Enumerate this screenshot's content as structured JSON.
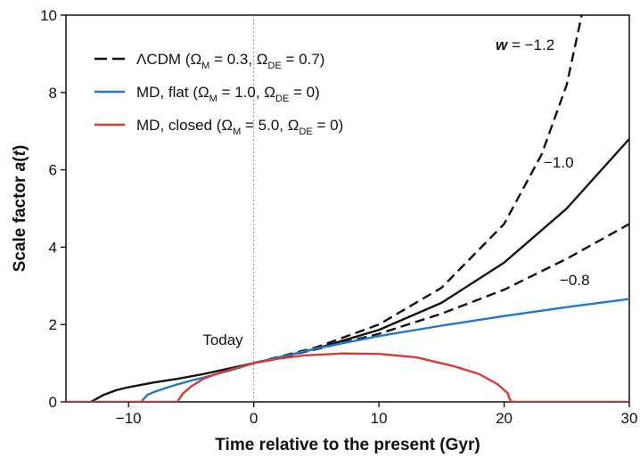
{
  "chart_data": {
    "type": "line",
    "xlabel": "Time relative to the present (Gyr)",
    "ylabel_main": "Scale factor ",
    "ylabel_var": "a",
    "ylabel_open": "(",
    "ylabel_t": "t",
    "ylabel_close": ")",
    "xlim": [
      -15,
      30
    ],
    "ylim": [
      0,
      10
    ],
    "xticks": [
      -10,
      0,
      10,
      20,
      30
    ],
    "yticks": [
      0,
      2,
      4,
      6,
      8,
      10
    ],
    "xtick_labels": [
      "−10",
      "0",
      "10",
      "20",
      "30"
    ],
    "ytick_labels": [
      "0",
      "2",
      "4",
      "6",
      "8",
      "10"
    ],
    "grid": false,
    "legend_position": "top-left",
    "today_x": 0,
    "today_label": "Today",
    "annotations": {
      "w_var": "w",
      "w_rest": " = −1.2",
      "minus_one": "−1.0",
      "minus_point_eight": "−0.8"
    },
    "legend": [
      {
        "style": "dashed",
        "color": "#111111",
        "lambda": "Λ",
        "prefix": "CDM (Ω",
        "sub_m": "M",
        "mid": " = 0.3, Ω",
        "sub_de": "DE",
        "suffix": " = 0.7)"
      },
      {
        "style": "solid",
        "color": "#1f78c8",
        "prefix": "MD, flat (Ω",
        "sub_m": "M",
        "mid": " = 1.0, Ω",
        "sub_de": "DE",
        "suffix": " = 0)"
      },
      {
        "style": "solid",
        "color": "#d93a31",
        "prefix": "MD, closed (Ω",
        "sub_m": "M",
        "mid": " = 5.0, Ω",
        "sub_de": "DE",
        "suffix": " = 0)"
      }
    ],
    "series": [
      {
        "name": "ΛCDM",
        "color": "#111111",
        "style": "solid",
        "x": [
          -13.0,
          -12.0,
          -11.0,
          -10.0,
          -8.0,
          -6.0,
          -4.0,
          -2.0,
          0.0,
          2.0,
          5.0,
          10.0,
          15.0,
          20.0,
          25.0,
          30.0
        ],
        "y": [
          0.0,
          0.18,
          0.3,
          0.38,
          0.5,
          0.6,
          0.72,
          0.86,
          1.0,
          1.14,
          1.38,
          1.86,
          2.56,
          3.6,
          5.0,
          6.8
        ]
      },
      {
        "name": "w = −1.2",
        "color": "#111111",
        "style": "dashed",
        "x": [
          0.0,
          5.0,
          10.0,
          15.0,
          20.0,
          23.0,
          25.0,
          26.2
        ],
        "y": [
          1.0,
          1.41,
          2.0,
          2.95,
          4.6,
          6.4,
          8.2,
          10.0
        ]
      },
      {
        "name": "w = −0.8",
        "color": "#111111",
        "style": "dashed",
        "x": [
          0.0,
          5.0,
          10.0,
          15.0,
          20.0,
          25.0,
          30.0
        ],
        "y": [
          1.0,
          1.36,
          1.76,
          2.28,
          2.9,
          3.7,
          4.6
        ]
      },
      {
        "name": "MD, flat",
        "color": "#1f78c8",
        "style": "solid",
        "x": [
          -9.0,
          -8.5,
          -8.0,
          -7.0,
          -6.0,
          -5.0,
          -4.0,
          -3.0,
          -2.0,
          -1.0,
          0.0,
          5.0,
          10.0,
          15.0,
          20.0,
          25.0,
          30.0
        ],
        "y": [
          0.0,
          0.18,
          0.25,
          0.36,
          0.46,
          0.55,
          0.63,
          0.72,
          0.8,
          0.9,
          1.0,
          1.38,
          1.7,
          1.97,
          2.22,
          2.45,
          2.66
        ]
      },
      {
        "name": "MD, closed",
        "color": "#d93a31",
        "style": "solid",
        "x": [
          -15.0,
          -6.1,
          -6.0,
          -5.7,
          -5.0,
          -4.0,
          -3.0,
          -2.0,
          -1.0,
          0.0,
          2.0,
          4.0,
          7.0,
          10.0,
          13.0,
          16.0,
          18.0,
          19.5,
          20.3,
          20.4,
          20.6,
          30.0
        ],
        "y": [
          0.0,
          0.0,
          0.05,
          0.2,
          0.4,
          0.6,
          0.72,
          0.82,
          0.91,
          1.0,
          1.12,
          1.2,
          1.25,
          1.24,
          1.15,
          0.92,
          0.72,
          0.45,
          0.22,
          0.1,
          0.0,
          0.0
        ]
      }
    ]
  }
}
